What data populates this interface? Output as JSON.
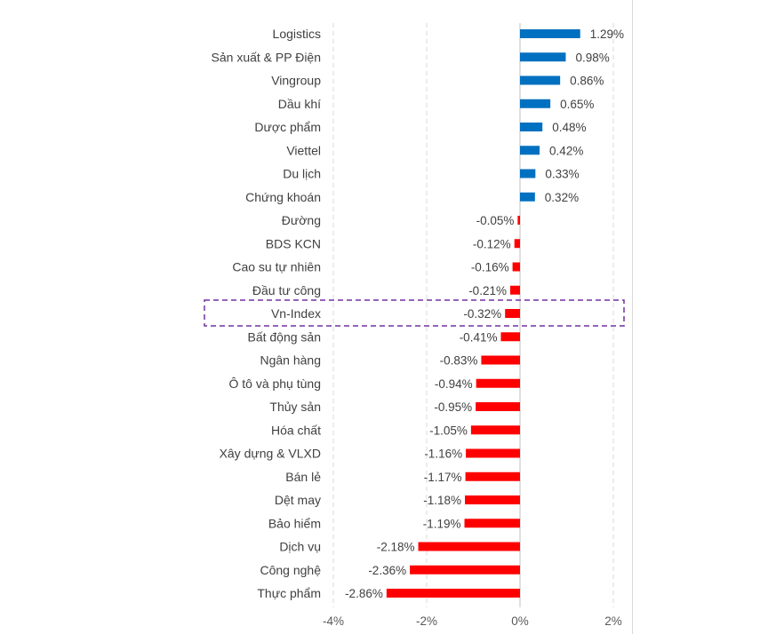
{
  "colors": {
    "positive": "#0070C0",
    "negative": "#FF0000",
    "highlight_box": "#7030A0",
    "grid": "#D9D9D9"
  },
  "chart_data": {
    "type": "bar",
    "orientation": "horizontal",
    "categories": [
      "Logistics",
      "Sản xuất & PP Điện",
      "Vingroup",
      "Dầu khí",
      "Dược phẩm",
      "Viettel",
      "Du lịch",
      "Chứng khoán",
      "Đường",
      "BDS KCN",
      "Cao su tự nhiên",
      "Đầu tư công",
      "Vn-Index",
      "Bất động sản",
      "Ngân hàng",
      "Ô tô và phụ tùng",
      "Thủy sản",
      "Hóa chất",
      "Xây dựng & VLXD",
      "Bán lẻ",
      "Dệt may",
      "Bảo hiểm",
      "Dịch vụ",
      "Công nghệ",
      "Thực phẩm"
    ],
    "values": [
      1.29,
      0.98,
      0.86,
      0.65,
      0.48,
      0.42,
      0.33,
      0.32,
      -0.05,
      -0.12,
      -0.16,
      -0.21,
      -0.32,
      -0.41,
      -0.83,
      -0.94,
      -0.95,
      -1.05,
      -1.16,
      -1.17,
      -1.18,
      -1.19,
      -2.18,
      -2.36,
      -2.86
    ],
    "value_labels": [
      "1.29%",
      "0.98%",
      "0.86%",
      "0.65%",
      "0.48%",
      "0.42%",
      "0.33%",
      "0.32%",
      "-0.05%",
      "-0.12%",
      "-0.16%",
      "-0.21%",
      "-0.32%",
      "-0.41%",
      "-0.83%",
      "-0.94%",
      "-0.95%",
      "-1.05%",
      "-1.16%",
      "-1.17%",
      "-1.18%",
      "-1.19%",
      "-2.18%",
      "-2.36%",
      "-2.86%"
    ],
    "highlighted_category": "Vn-Index",
    "xlim": [
      -4,
      2
    ],
    "x_ticks": [
      -4,
      -2,
      0,
      2
    ],
    "x_tick_labels": [
      "-4%",
      "-2%",
      "0%",
      "2%"
    ],
    "grid": "vertical dashed",
    "title": "",
    "xlabel": "",
    "ylabel": ""
  }
}
